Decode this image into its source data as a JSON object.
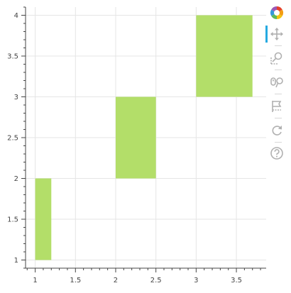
{
  "chart_data": {
    "type": "bar",
    "orientation": "vertical",
    "bars": [
      {
        "x0": 1.0,
        "x1": 1.2,
        "bottom": 1,
        "top": 2
      },
      {
        "x0": 2.0,
        "x1": 2.5,
        "bottom": 2,
        "top": 3
      },
      {
        "x0": 3.0,
        "x1": 3.7,
        "bottom": 3,
        "top": 4
      }
    ],
    "xlim": [
      0.88,
      3.87
    ],
    "ylim": [
      0.9,
      4.1
    ],
    "xticks": [
      1,
      1.5,
      2,
      2.5,
      3,
      3.5
    ],
    "yticks": [
      1,
      1.5,
      2,
      2.5,
      3,
      3.5,
      4
    ],
    "xticklabels": [
      "1",
      "1.5",
      "2",
      "2.5",
      "3",
      "3.5"
    ],
    "yticklabels": [
      "1",
      "1.5",
      "2",
      "2.5",
      "3",
      "3.5",
      "4"
    ],
    "title": "",
    "xlabel": "",
    "ylabel": "",
    "grid": true,
    "legend": "none",
    "bar_color": "#b3de69",
    "grid_color": "#e5e5e5",
    "axis_color": "#444444"
  },
  "toolbar": {
    "tools": [
      {
        "name": "bokeh-logo-icon",
        "active": false
      },
      {
        "name": "pan-icon",
        "active": true
      },
      {
        "name": "box-zoom-icon",
        "active": false
      },
      {
        "name": "wheel-zoom-icon",
        "active": false
      },
      {
        "name": "save-icon",
        "active": false
      },
      {
        "name": "reset-icon",
        "active": false
      },
      {
        "name": "help-icon",
        "active": false
      }
    ]
  }
}
